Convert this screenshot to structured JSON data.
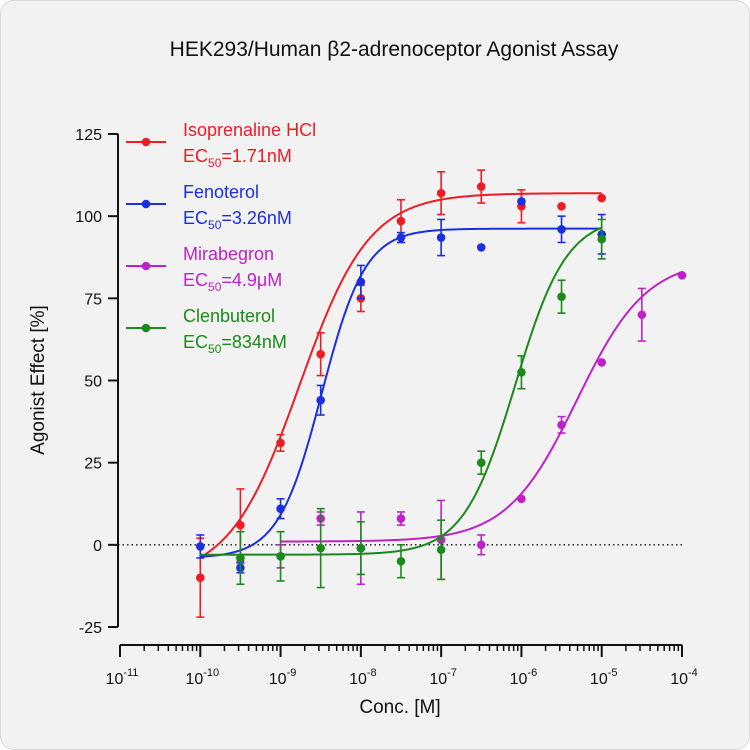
{
  "chart_data": {
    "type": "scatter",
    "title": "HEK293/Human β2-adrenoceptor Agonist Assay",
    "xlabel": "Conc. [M]",
    "ylabel": "Agonist Effect [%]",
    "x_scale": "log",
    "xlim": [
      1e-11,
      0.0001
    ],
    "ylim": [
      -25,
      125
    ],
    "x_ticks": [
      {
        "value": 1e-11,
        "exp": "-11"
      },
      {
        "value": 1e-10,
        "exp": "-10"
      },
      {
        "value": 1e-09,
        "exp": "-9"
      },
      {
        "value": 1e-08,
        "exp": "-8"
      },
      {
        "value": 1e-07,
        "exp": "-7"
      },
      {
        "value": 1e-06,
        "exp": "-6"
      },
      {
        "value": 1e-05,
        "exp": "-5"
      },
      {
        "value": 0.0001,
        "exp": "-4"
      }
    ],
    "y_ticks": [
      -25,
      0,
      25,
      50,
      75,
      100,
      125
    ],
    "zero_reference_line": 0,
    "grid": false,
    "legend_position": "top-left",
    "series": [
      {
        "name": "Isoprenaline HCl",
        "ec50_label": "=1.71nM",
        "color": "#ee1c25",
        "fit": {
          "bottom": -10.3,
          "top": 107,
          "ec50": 1.71e-09,
          "hill": 1.0,
          "x_range": [
            1e-10,
            1e-05
          ]
        },
        "points": [
          {
            "x": 1e-10,
            "y": -10,
            "err": 12
          },
          {
            "x": 3.16e-10,
            "y": 6,
            "err": 11
          },
          {
            "x": 1e-09,
            "y": 31,
            "err": 2.5
          },
          {
            "x": 3.16e-09,
            "y": 58,
            "err": 6.5
          },
          {
            "x": 1e-08,
            "y": 75,
            "err": 4
          },
          {
            "x": 3.16e-08,
            "y": 98.5,
            "err": 6.5
          },
          {
            "x": 1e-07,
            "y": 107,
            "err": 6.5
          },
          {
            "x": 3.16e-07,
            "y": 109,
            "err": 5
          },
          {
            "x": 1e-06,
            "y": 103,
            "err": 5
          },
          {
            "x": 3.16e-06,
            "y": 103,
            "err": 0
          },
          {
            "x": 1e-05,
            "y": 105.5,
            "err": 0
          }
        ]
      },
      {
        "name": "Fenoterol",
        "ec50_label": "=3.26nM",
        "color": "#1a2fe0",
        "fit": {
          "bottom": -4,
          "top": 96.2,
          "ec50": 3.26e-09,
          "hill": 1.6,
          "x_range": [
            1e-10,
            1e-05
          ]
        },
        "points": [
          {
            "x": 1e-10,
            "y": -0.5,
            "err": 3.5
          },
          {
            "x": 3.16e-10,
            "y": -7,
            "err": 1.5
          },
          {
            "x": 1e-09,
            "y": 11,
            "err": 3
          },
          {
            "x": 3.16e-09,
            "y": 44,
            "err": 4.5
          },
          {
            "x": 1e-08,
            "y": 80,
            "err": 5
          },
          {
            "x": 3.16e-08,
            "y": 93.5,
            "err": 1.5
          },
          {
            "x": 1e-07,
            "y": 93.5,
            "err": 5.5
          },
          {
            "x": 3.16e-07,
            "y": 90.5,
            "err": 0
          },
          {
            "x": 1e-06,
            "y": 104.5,
            "err": 0
          },
          {
            "x": 3.16e-06,
            "y": 96,
            "err": 4
          },
          {
            "x": 1e-05,
            "y": 94.5,
            "err": 6
          }
        ]
      },
      {
        "name": "Mirabegron",
        "ec50_label": "=4.9μM",
        "color": "#c020c8",
        "fit": {
          "bottom": 1.0,
          "top": 87,
          "ec50": 4.9e-06,
          "hill": 1.0,
          "x_range": [
            1e-09,
            0.0001
          ]
        },
        "points": [
          {
            "x": 1e-09,
            "y": -3.5,
            "err": 3.5
          },
          {
            "x": 3.16e-09,
            "y": 8,
            "err": 2
          },
          {
            "x": 1e-08,
            "y": -1,
            "err": 11
          },
          {
            "x": 3.16e-08,
            "y": 8,
            "err": 2
          },
          {
            "x": 1e-07,
            "y": 1.5,
            "err": 12
          },
          {
            "x": 3.16e-07,
            "y": 0,
            "err": 3
          },
          {
            "x": 1e-06,
            "y": 14,
            "err": 0
          },
          {
            "x": 3.16e-06,
            "y": 36.5,
            "err": 2.5
          },
          {
            "x": 1e-05,
            "y": 55.5,
            "err": 0
          },
          {
            "x": 3.16e-05,
            "y": 70,
            "err": 8
          },
          {
            "x": 0.0001,
            "y": 82,
            "err": 0
          }
        ]
      },
      {
        "name": "Clenbuterol",
        "ec50_label": "=834nM",
        "color": "#1a8a1a",
        "fit": {
          "bottom": -3,
          "top": 100,
          "ec50": 8.34e-07,
          "hill": 1.35,
          "x_range": [
            1e-10,
            1e-05
          ]
        },
        "points": [
          {
            "x": 3.16e-10,
            "y": -4,
            "err": 8
          },
          {
            "x": 1e-09,
            "y": -3.5,
            "err": 7.5
          },
          {
            "x": 3.16e-09,
            "y": -1,
            "err": 12
          },
          {
            "x": 1e-08,
            "y": -1,
            "err": 8
          },
          {
            "x": 3.16e-08,
            "y": -5,
            "err": 5
          },
          {
            "x": 1e-07,
            "y": -1.5,
            "err": 9
          },
          {
            "x": 3.16e-07,
            "y": 25,
            "err": 3.5
          },
          {
            "x": 1e-06,
            "y": 52.5,
            "err": 5
          },
          {
            "x": 3.16e-06,
            "y": 75.5,
            "err": 5
          },
          {
            "x": 1e-05,
            "y": 93,
            "err": 6
          }
        ]
      }
    ]
  }
}
